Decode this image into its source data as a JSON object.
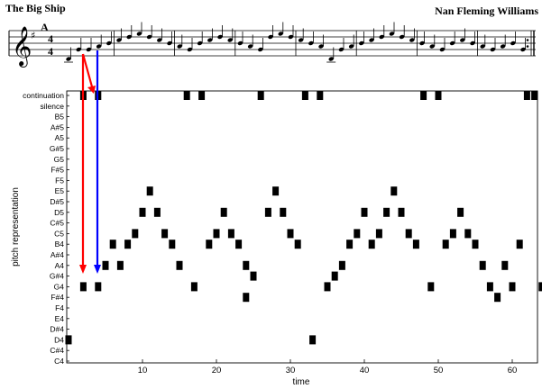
{
  "score": {
    "title": "The Big Ship",
    "composer": "Nan Fleming Williams",
    "rehearsal_mark": "A",
    "time_signature_top": "4",
    "time_signature_bottom": "4",
    "note_names": "D4 G4 G4 A4 B4 C5 D5 E5 D5 C5 B4 A4 G4 B4 C5 D5 C5 B4 A4 G4 D5 E5 D5 C5 B4 A4 D4 G4 A4 B4 C5 D5 E5 D5 C5 B4 A4 G4 B4 C5 B4 A4 G4 A4 B4 G4",
    "arrow_colors": {
      "red": "#ff0000",
      "blue": "#0000ff"
    }
  },
  "chart_data": {
    "type": "scatter",
    "marker": "square",
    "xlabel": "time",
    "ylabel": "pitch representation",
    "xlim": [
      0,
      65
    ],
    "xticks": [
      10,
      20,
      30,
      40,
      50,
      60
    ],
    "ycategories": [
      "C4",
      "C#4",
      "D4",
      "D#4",
      "E4",
      "F4",
      "F#4",
      "G4",
      "G#4",
      "A4",
      "A#4",
      "B4",
      "C5",
      "C#5",
      "D5",
      "D#5",
      "E5",
      "F5",
      "F#5",
      "G5",
      "G#5",
      "A5",
      "A#5",
      "B5",
      "silence",
      "continuation"
    ],
    "points": [
      [
        0,
        "D4"
      ],
      [
        2,
        "continuation"
      ],
      [
        2,
        "G4"
      ],
      [
        4,
        "continuation"
      ],
      [
        4,
        "G4"
      ],
      [
        5,
        "A4"
      ],
      [
        6,
        "B4"
      ],
      [
        7,
        "A4"
      ],
      [
        8,
        "B4"
      ],
      [
        9,
        "C5"
      ],
      [
        10,
        "D5"
      ],
      [
        11,
        "E5"
      ],
      [
        12,
        "D5"
      ],
      [
        13,
        "C5"
      ],
      [
        14,
        "B4"
      ],
      [
        15,
        "A4"
      ],
      [
        16,
        "continuation"
      ],
      [
        17,
        "G4"
      ],
      [
        18,
        "continuation"
      ],
      [
        19,
        "B4"
      ],
      [
        20,
        "C5"
      ],
      [
        21,
        "D5"
      ],
      [
        22,
        "C5"
      ],
      [
        23,
        "B4"
      ],
      [
        24,
        "A4"
      ],
      [
        24,
        "F#4"
      ],
      [
        25,
        "G#4"
      ],
      [
        26,
        "continuation"
      ],
      [
        27,
        "D5"
      ],
      [
        28,
        "E5"
      ],
      [
        29,
        "D5"
      ],
      [
        30,
        "C5"
      ],
      [
        31,
        "B4"
      ],
      [
        32,
        "continuation"
      ],
      [
        33,
        "D4"
      ],
      [
        34,
        "continuation"
      ],
      [
        35,
        "G4"
      ],
      [
        36,
        "G#4"
      ],
      [
        37,
        "A4"
      ],
      [
        38,
        "B4"
      ],
      [
        39,
        "C5"
      ],
      [
        40,
        "D5"
      ],
      [
        41,
        "B4"
      ],
      [
        42,
        "C5"
      ],
      [
        43,
        "D5"
      ],
      [
        44,
        "E5"
      ],
      [
        45,
        "D5"
      ],
      [
        46,
        "C5"
      ],
      [
        47,
        "B4"
      ],
      [
        48,
        "continuation"
      ],
      [
        49,
        "G4"
      ],
      [
        50,
        "continuation"
      ],
      [
        51,
        "B4"
      ],
      [
        52,
        "C5"
      ],
      [
        53,
        "D5"
      ],
      [
        54,
        "C5"
      ],
      [
        55,
        "B4"
      ],
      [
        56,
        "A4"
      ],
      [
        57,
        "G4"
      ],
      [
        58,
        "F#4"
      ],
      [
        59,
        "A4"
      ],
      [
        60,
        "G4"
      ],
      [
        61,
        "B4"
      ],
      [
        62,
        "continuation"
      ],
      [
        63,
        "continuation"
      ],
      [
        64,
        "G4"
      ],
      [
        65,
        "continuation"
      ]
    ],
    "grid": false,
    "marker_color": "#000000"
  }
}
